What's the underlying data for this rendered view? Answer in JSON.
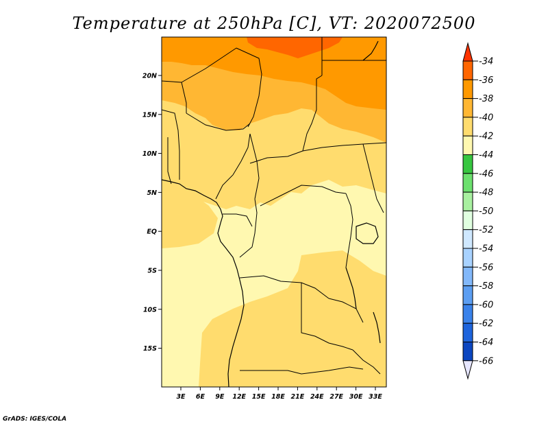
{
  "title": "Temperature at 250hPa [C], VT: 2020072500",
  "credit": "GrADS: IGES/COLA",
  "map": {
    "lon_labels": [
      "3E",
      "6E",
      "9E",
      "12E",
      "15E",
      "18E",
      "21E",
      "24E",
      "27E",
      "30E",
      "33E"
    ],
    "lat_labels": [
      "20N",
      "15N",
      "10N",
      "5N",
      "EQ",
      "5S",
      "10S",
      "15S"
    ],
    "colors": {
      "t36": "#ff6600",
      "t38": "#ff9900",
      "t40": "#ffb733",
      "t42": "#ffdc6e",
      "t44": "#fff8b0"
    }
  },
  "colorbar": {
    "labels": [
      "-34",
      "-36",
      "-38",
      "-40",
      "-42",
      "-44",
      "-46",
      "-48",
      "-50",
      "-52",
      "-54",
      "-56",
      "-58",
      "-60",
      "-62",
      "-64",
      "-66"
    ],
    "colors": [
      "#ff6600",
      "#ff9900",
      "#ffb733",
      "#ffdc6e",
      "#fff8b0",
      "#37c640",
      "#6ce06e",
      "#a8f0a0",
      "#e0ffe0",
      "#cfe8ff",
      "#a8d2ff",
      "#82b8fa",
      "#5c9ef2",
      "#3a82ea",
      "#1e64dc",
      "#0c46c0",
      "#062a90"
    ],
    "top_color": "#ff3300",
    "bottom_color": "#e6e6ff"
  }
}
